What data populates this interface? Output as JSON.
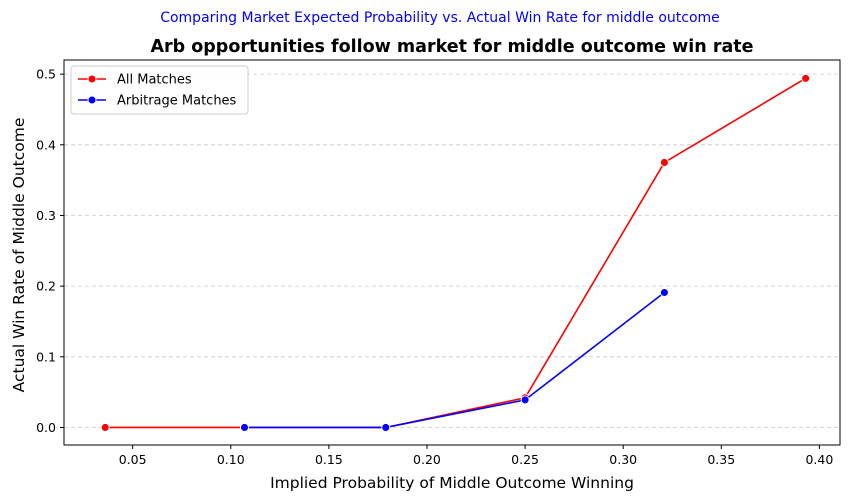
{
  "chart_data": {
    "type": "line",
    "suptitle": "Comparing Market Expected Probability vs. Actual Win Rate for middle outcome",
    "suptitle_color": "#0000ff",
    "title": "Arb opportunities follow market for middle outcome win rate",
    "xlabel": "Implied Probability of Middle Outcome Winning",
    "ylabel": "Actual Win Rate of Middle Outcome",
    "xlim": [
      0.015,
      0.4105
    ],
    "ylim": [
      -0.0248,
      0.52
    ],
    "xticks": [
      0.05,
      0.1,
      0.15,
      0.2,
      0.25,
      0.3,
      0.35,
      0.4
    ],
    "xtick_labels": [
      "0.05",
      "0.10",
      "0.15",
      "0.20",
      "0.25",
      "0.30",
      "0.35",
      "0.40"
    ],
    "yticks": [
      0.0,
      0.1,
      0.2,
      0.3,
      0.4,
      0.5
    ],
    "ytick_labels": [
      "0.0",
      "0.1",
      "0.2",
      "0.3",
      "0.4",
      "0.5"
    ],
    "grid": "y-dashed",
    "legend_position": "top-left",
    "series": [
      {
        "name": "All Matches",
        "color": "#ff0000",
        "x": [
          0.036,
          0.107,
          0.179,
          0.25,
          0.321,
          0.393
        ],
        "y": [
          0.0,
          0.0,
          0.0,
          0.042,
          0.375,
          0.494
        ]
      },
      {
        "name": "Arbitrage Matches",
        "color": "#0000ff",
        "x": [
          0.107,
          0.179,
          0.25,
          0.321
        ],
        "y": [
          0.0,
          0.0,
          0.039,
          0.191
        ]
      }
    ]
  }
}
